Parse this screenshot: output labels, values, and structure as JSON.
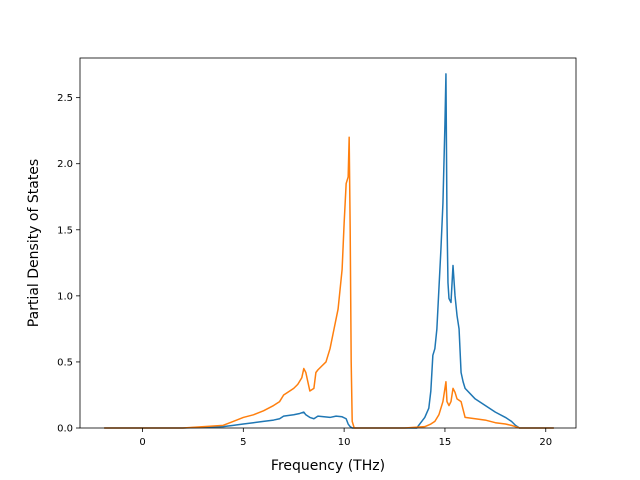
{
  "chart_data": {
    "type": "line",
    "title": "",
    "xlabel": "Frequency (THz)",
    "ylabel": "Partial Density of States",
    "xlim": [
      -3.1,
      21.5
    ],
    "ylim": [
      0,
      2.8
    ],
    "xticks": [
      0,
      5,
      10,
      15,
      20
    ],
    "yticks": [
      0.0,
      0.5,
      1.0,
      1.5,
      2.0,
      2.5
    ],
    "xtick_labels": [
      "0",
      "5",
      "10",
      "15",
      "20"
    ],
    "ytick_labels": [
      "0.0",
      "0.5",
      "1.0",
      "1.5",
      "2.0",
      "2.5"
    ],
    "grid": false,
    "legend": false,
    "series": [
      {
        "color": "#1f77b4",
        "x": [
          -1.9,
          0,
          2,
          4,
          4.5,
          5,
          5.5,
          6,
          6.5,
          6.8,
          7,
          7.5,
          7.8,
          8.0,
          8.1,
          8.3,
          8.5,
          8.7,
          9.0,
          9.3,
          9.6,
          9.9,
          10.1,
          10.2,
          10.3,
          10.4,
          10.5,
          10.6,
          11,
          12,
          13,
          13.6,
          13.8,
          14.0,
          14.2,
          14.3,
          14.4,
          14.5,
          14.6,
          14.7,
          14.8,
          14.9,
          15.0,
          15.05,
          15.1,
          15.15,
          15.2,
          15.3,
          15.4,
          15.5,
          15.6,
          15.7,
          15.8,
          15.9,
          16.0,
          16.5,
          17,
          17.5,
          18,
          18.3,
          18.5,
          18.7,
          19,
          20,
          20.4
        ],
        "y": [
          0,
          0,
          0,
          0.01,
          0.02,
          0.03,
          0.04,
          0.05,
          0.06,
          0.07,
          0.09,
          0.1,
          0.11,
          0.12,
          0.1,
          0.08,
          0.07,
          0.09,
          0.085,
          0.08,
          0.09,
          0.085,
          0.07,
          0.03,
          0.01,
          0,
          0,
          0,
          0,
          0,
          0,
          0,
          0.04,
          0.08,
          0.15,
          0.28,
          0.55,
          0.6,
          0.75,
          1.05,
          1.35,
          1.7,
          2.3,
          2.68,
          1.6,
          1.1,
          0.98,
          0.95,
          1.23,
          1.0,
          0.85,
          0.75,
          0.42,
          0.35,
          0.3,
          0.22,
          0.17,
          0.12,
          0.08,
          0.05,
          0.02,
          0,
          0,
          0,
          0
        ]
      },
      {
        "color": "#ff7f0e",
        "x": [
          -1.9,
          0,
          2,
          4,
          4.5,
          5,
          5.5,
          6,
          6.5,
          6.8,
          7,
          7.2,
          7.5,
          7.7,
          7.9,
          8.0,
          8.1,
          8.3,
          8.5,
          8.6,
          8.7,
          8.9,
          9.1,
          9.3,
          9.5,
          9.7,
          9.9,
          10.0,
          10.1,
          10.2,
          10.25,
          10.3,
          10.35,
          10.4,
          10.5,
          10.6,
          11,
          12,
          13,
          14,
          14.3,
          14.5,
          14.7,
          14.9,
          15.0,
          15.05,
          15.1,
          15.2,
          15.3,
          15.4,
          15.5,
          15.6,
          15.8,
          16.0,
          16.5,
          17,
          17.5,
          18,
          18.3,
          18.5,
          18.7,
          19,
          20,
          20.4
        ],
        "y": [
          0,
          0,
          0,
          0.02,
          0.05,
          0.08,
          0.1,
          0.13,
          0.17,
          0.2,
          0.25,
          0.27,
          0.3,
          0.33,
          0.38,
          0.45,
          0.42,
          0.28,
          0.3,
          0.42,
          0.44,
          0.47,
          0.5,
          0.6,
          0.75,
          0.9,
          1.2,
          1.55,
          1.85,
          1.9,
          2.2,
          1.5,
          0.5,
          0.05,
          0,
          0,
          0,
          0,
          0,
          0.01,
          0.03,
          0.05,
          0.1,
          0.2,
          0.3,
          0.35,
          0.2,
          0.17,
          0.2,
          0.3,
          0.27,
          0.22,
          0.2,
          0.08,
          0.07,
          0.06,
          0.04,
          0.03,
          0.02,
          0.01,
          0,
          0,
          0,
          0
        ]
      }
    ]
  }
}
